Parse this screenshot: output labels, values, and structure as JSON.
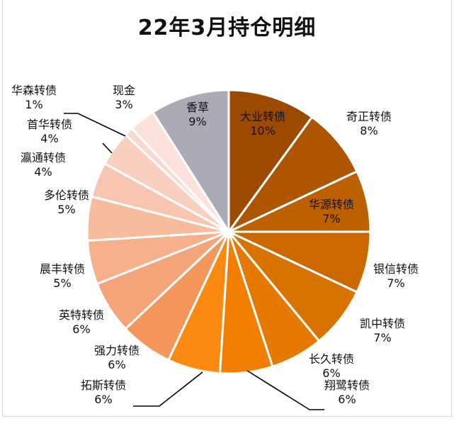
{
  "chart_data": {
    "type": "pie",
    "title": "22年3月持仓明细",
    "slices": [
      {
        "label": "大业转债",
        "pct_label": "10%",
        "value": 10,
        "color": "#9c4a00"
      },
      {
        "label": "奇正转债",
        "pct_label": "8%",
        "value": 8,
        "color": "#ad5500"
      },
      {
        "label": "华源转债",
        "pct_label": "7%",
        "value": 7,
        "color": "#bd6000"
      },
      {
        "label": "银信转债",
        "pct_label": "7%",
        "value": 7,
        "color": "#cc6800"
      },
      {
        "label": "凯中转债",
        "pct_label": "7%",
        "value": 7,
        "color": "#d97300"
      },
      {
        "label": "长久转债",
        "pct_label": "6%",
        "value": 6,
        "color": "#e67a00"
      },
      {
        "label": "翔鹭转债",
        "pct_label": "6%",
        "value": 6,
        "color": "#f27f00"
      },
      {
        "label": "拓斯转债",
        "pct_label": "6%",
        "value": 6,
        "color": "#fa8a10"
      },
      {
        "label": "强力转债",
        "pct_label": "6%",
        "value": 6,
        "color": "#f4975c"
      },
      {
        "label": "英特转债",
        "pct_label": "6%",
        "value": 6,
        "color": "#f5a57a"
      },
      {
        "label": "晨丰转债",
        "pct_label": "5%",
        "value": 5,
        "color": "#f6b08c"
      },
      {
        "label": "多伦转债",
        "pct_label": "5%",
        "value": 5,
        "color": "#f7bb9e"
      },
      {
        "label": "瀛通转债",
        "pct_label": "4%",
        "value": 4,
        "color": "#f8c6b0"
      },
      {
        "label": "首华转债",
        "pct_label": "4%",
        "value": 4,
        "color": "#f9d0bf"
      },
      {
        "label": "华森转债",
        "pct_label": "1%",
        "value": 1,
        "color": "#fad9cd"
      },
      {
        "label": "现金",
        "pct_label": "3%",
        "value": 3,
        "color": "#fce2da"
      },
      {
        "label": "香草",
        "pct_label": "9%",
        "value": 9,
        "color": "#acaab5"
      }
    ]
  }
}
